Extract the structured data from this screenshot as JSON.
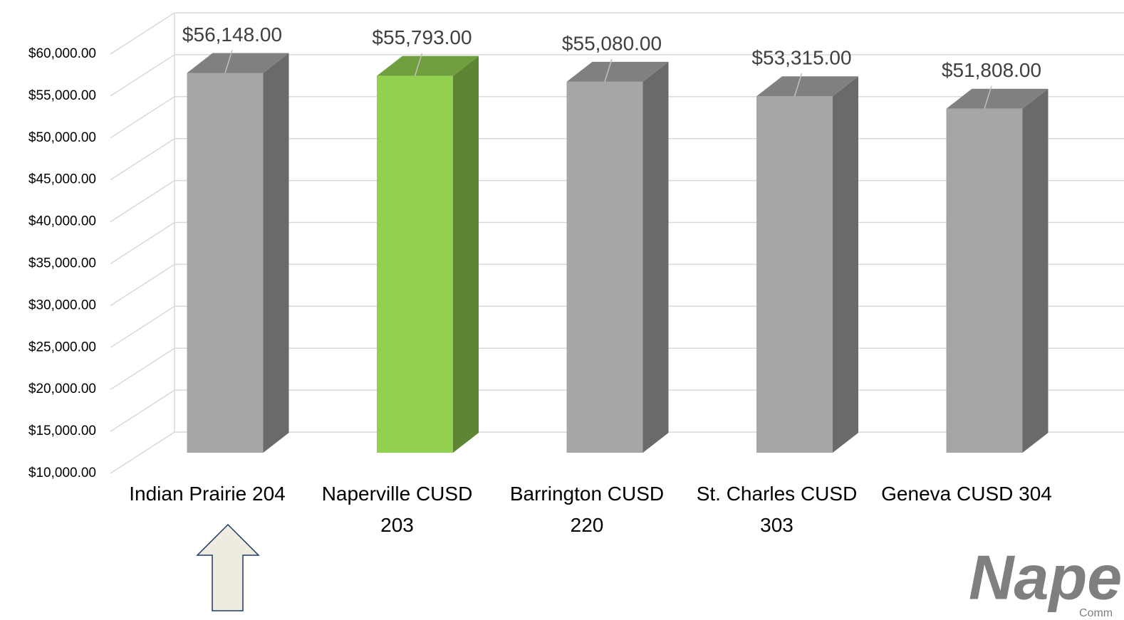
{
  "chart_data": {
    "type": "bar3d",
    "categories": [
      "Indian Prairie 204",
      "Naperville CUSD 203",
      "Barrington CUSD 220",
      "St. Charles CUSD 303",
      "Geneva CUSD 304"
    ],
    "values": [
      56148,
      55793,
      55080,
      53315,
      51808
    ],
    "value_labels": [
      "$56,148.00",
      "$55,793.00",
      "$55,080.00",
      "$53,315.00",
      "$51,808.00"
    ],
    "colors": [
      "#a6a6a6",
      "#92d050",
      "#a6a6a6",
      "#a6a6a6",
      "#a6a6a6"
    ],
    "ylim": [
      10000,
      60000
    ],
    "yticks": [
      {
        "value": 10000,
        "label": "$10,000.00"
      },
      {
        "value": 15000,
        "label": "$15,000.00"
      },
      {
        "value": 20000,
        "label": "$20,000.00"
      },
      {
        "value": 25000,
        "label": "$25,000.00"
      },
      {
        "value": 30000,
        "label": "$30,000.00"
      },
      {
        "value": 35000,
        "label": "$35,000.00"
      },
      {
        "value": 40000,
        "label": "$40,000.00"
      },
      {
        "value": 45000,
        "label": "$45,000.00"
      },
      {
        "value": 50000,
        "label": "$50,000.00"
      },
      {
        "value": 55000,
        "label": "$55,000.00"
      },
      {
        "value": 60000,
        "label": "$60,000.00"
      }
    ],
    "grid": true
  },
  "logo": {
    "text": "Nape",
    "subtext": "Comm"
  }
}
